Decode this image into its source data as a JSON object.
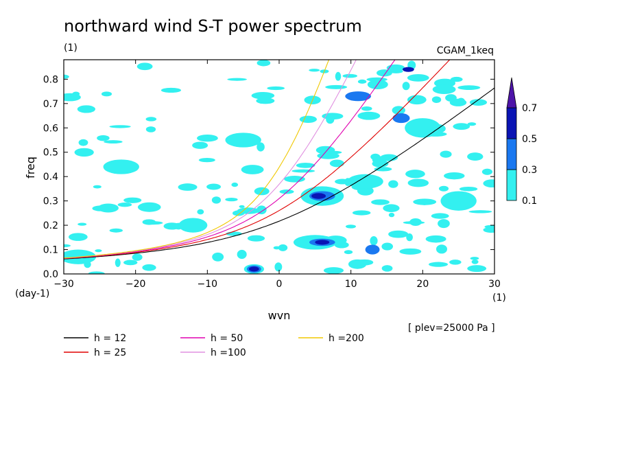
{
  "chart_data": {
    "type": "contour",
    "title": "northward wind S-T power spectrum",
    "subtitle_left": "(1)",
    "subtitle_right": "CGAM_1keq",
    "xlabel": "wvn",
    "ylabel": "freq",
    "x_unit": "(1)",
    "y_unit": "(day-1)",
    "xlim": [
      -30,
      30
    ],
    "ylim": [
      0,
      0.88
    ],
    "x_ticks": [
      "-30",
      "-20",
      "-10",
      "0",
      "10",
      "20",
      "30"
    ],
    "y_ticks": [
      "0.0",
      "0.1",
      "0.2",
      "0.3",
      "0.4",
      "0.5",
      "0.6",
      "0.7",
      "0.8"
    ],
    "annotation": "[ plev=25000 Pa ]",
    "colorbar": {
      "levels": [
        "0.1",
        "0.3",
        "0.5",
        "0.7"
      ],
      "colors": [
        "#33f0f0",
        "#1a78f0",
        "#0a14b4",
        "#4d14a8"
      ]
    },
    "contour_fields": [
      {
        "level": 0.1,
        "color": "#33f0f0",
        "blobs": [
          [
            -3.5,
            0.02,
            1.4,
            0.02
          ],
          [
            -28,
            0.07,
            2.5,
            0.03
          ],
          [
            -12,
            0.2,
            2.0,
            0.03
          ],
          [
            6,
            0.32,
            3.0,
            0.04
          ],
          [
            5,
            0.13,
            3.0,
            0.03
          ],
          [
            12,
            0.38,
            2.5,
            0.03
          ],
          [
            20,
            0.6,
            2.5,
            0.04
          ],
          [
            25,
            0.3,
            2.5,
            0.04
          ],
          [
            -22,
            0.44,
            2.5,
            0.03
          ],
          [
            -5,
            0.55,
            2.5,
            0.03
          ]
        ]
      },
      {
        "level": 0.3,
        "color": "#1a78f0",
        "blobs": [
          [
            -3.5,
            0.02,
            1.0,
            0.015
          ],
          [
            6,
            0.32,
            1.8,
            0.02
          ],
          [
            6,
            0.13,
            1.8,
            0.015
          ],
          [
            11,
            0.73,
            1.8,
            0.02
          ],
          [
            17,
            0.64,
            1.2,
            0.02
          ],
          [
            13,
            0.1,
            1.0,
            0.02
          ]
        ]
      },
      {
        "level": 0.5,
        "color": "#0a14b4",
        "blobs": [
          [
            -3.5,
            0.02,
            0.7,
            0.01
          ],
          [
            5.5,
            0.32,
            1.0,
            0.012
          ],
          [
            6,
            0.13,
            1.0,
            0.01
          ],
          [
            18,
            0.84,
            0.8,
            0.01
          ]
        ]
      }
    ],
    "series": [
      {
        "name": "h = 12",
        "color": "#000000",
        "h": 12
      },
      {
        "name": "h = 25",
        "color": "#e00000",
        "h": 25
      },
      {
        "name": "h = 50",
        "color": "#e000b0",
        "h": 50
      },
      {
        "name": "h =100",
        "color": "#e090e0",
        "h": 100
      },
      {
        "name": "h =200",
        "color": "#f0c800",
        "h": 200
      }
    ]
  }
}
